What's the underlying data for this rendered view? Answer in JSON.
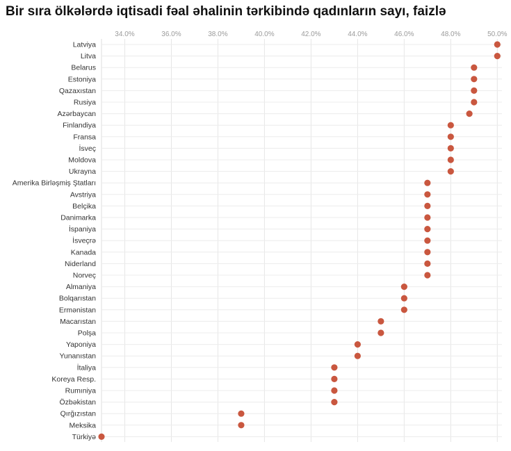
{
  "chart_data": {
    "type": "scatter",
    "title": "Bir sıra ölkələrdə iqtisadi fəal əhalinin tərkibində qadınların sayı, faizlə",
    "xlim": [
      33.0,
      50.2
    ],
    "x_ticks": [
      "34.0%",
      "36.0%",
      "38.0%",
      "40.0%",
      "42.0%",
      "44.0%",
      "46.0%",
      "48.0%",
      "50.0%"
    ],
    "x_tick_values": [
      34,
      36,
      38,
      40,
      42,
      44,
      46,
      48,
      50
    ],
    "grid": true,
    "point_color": "#c9573f",
    "categories": [
      "Latviya",
      "Litva",
      "Belarus",
      "Estoniya",
      "Qazaxıstan",
      "Rusiya",
      "Azərbaycan",
      "Finlandiya",
      "Fransa",
      "İsveç",
      "Moldova",
      "Ukrayna",
      "Amerika Birləşmiş Ştatları",
      "Avstriya",
      "Belçika",
      "Danimarka",
      "İspaniya",
      "İsveçrə",
      "Kanada",
      "Niderland",
      "Norveç",
      "Almaniya",
      "Bolqarıstan",
      "Ermənistan",
      "Macarıstan",
      "Polşa",
      "Yaponiya",
      "Yunanıstan",
      "İtaliya",
      "Koreya Resp.",
      "Rumıniya",
      "Özbəkistan",
      "Qırğızıstan",
      "Meksika",
      "Türkiyə"
    ],
    "values": [
      50.0,
      50.0,
      49.0,
      49.0,
      49.0,
      49.0,
      48.8,
      48.0,
      48.0,
      48.0,
      48.0,
      48.0,
      47.0,
      47.0,
      47.0,
      47.0,
      47.0,
      47.0,
      47.0,
      47.0,
      47.0,
      46.0,
      46.0,
      46.0,
      45.0,
      45.0,
      44.0,
      44.0,
      43.0,
      43.0,
      43.0,
      43.0,
      39.0,
      39.0,
      33.0
    ]
  }
}
